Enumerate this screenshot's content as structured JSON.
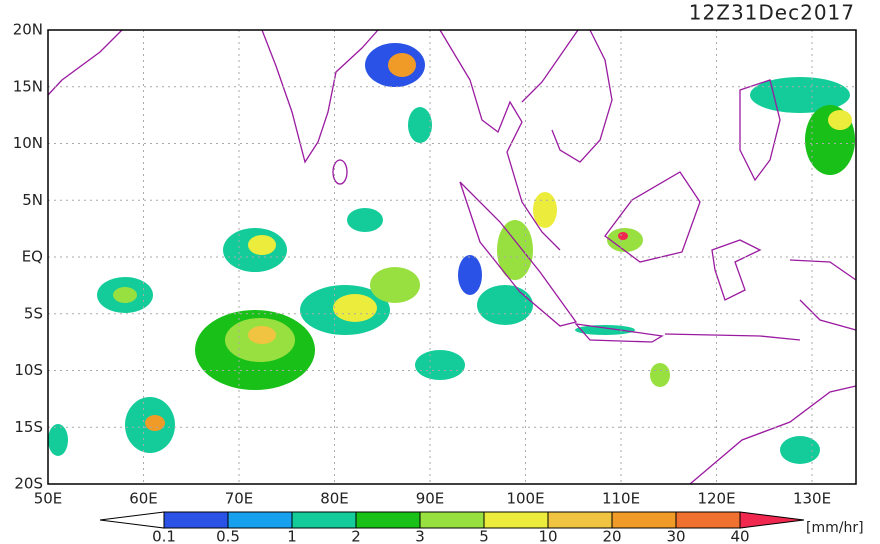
{
  "title": "12Z31Dec2017",
  "lat_labels": [
    "20N",
    "15N",
    "10N",
    "5N",
    "EQ",
    "5S",
    "10S",
    "15S",
    "20S"
  ],
  "lon_labels": [
    "50E",
    "60E",
    "70E",
    "80E",
    "90E",
    "100E",
    "110E",
    "120E",
    "130E"
  ],
  "colorbar": {
    "labels": [
      "0.1",
      "0.5",
      "1",
      "2",
      "3",
      "5",
      "10",
      "20",
      "30",
      "40"
    ],
    "colors": [
      "#2a52e6",
      "#16a0ee",
      "#14cc9a",
      "#18c018",
      "#98e040",
      "#ecec3c",
      "#f0c440",
      "#f09a28",
      "#f07030",
      "#f02850"
    ],
    "unit": "[mm/hr]"
  }
}
